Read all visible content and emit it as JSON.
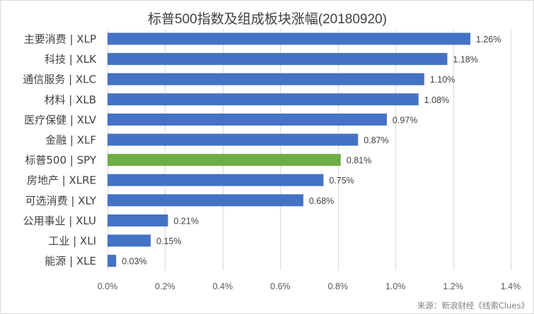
{
  "chart_data": {
    "type": "bar",
    "orientation": "horizontal",
    "title": "标普500指数及组成板块涨幅(20180920)",
    "categories": [
      "主要消费 | XLP",
      "科技 | XLK",
      "通信服务 | XLC",
      "材料 | XLB",
      "医疗保健 | XLV",
      "金融 | XLF",
      "标普500 | SPY",
      "房地产 | XLRE",
      "可选消费 | XLY",
      "公用事业 | XLU",
      "工业 | XLI",
      "能源 | XLE"
    ],
    "values": [
      1.26,
      1.18,
      1.1,
      1.08,
      0.97,
      0.87,
      0.81,
      0.75,
      0.68,
      0.21,
      0.15,
      0.03
    ],
    "value_labels": [
      "1.26%",
      "1.18%",
      "1.10%",
      "1.08%",
      "0.97%",
      "0.87%",
      "0.81%",
      "0.75%",
      "0.68%",
      "0.21%",
      "0.15%",
      "0.03%"
    ],
    "xlim": [
      0,
      1.4
    ],
    "x_ticks": [
      0,
      0.2,
      0.4,
      0.6,
      0.8,
      1.0,
      1.2,
      1.4
    ],
    "x_tick_labels": [
      "0.0%",
      "0.2%",
      "0.4%",
      "0.6%",
      "0.8%",
      "1.0%",
      "1.2%",
      "1.4%"
    ],
    "xlabel": "",
    "ylabel": "",
    "grid": "vertical",
    "legend": "none",
    "bar_color": "#4472c4",
    "highlight_color": "#70ad47",
    "highlight_index": 6
  },
  "source_note": "来源：新浪财经《线索Clues》"
}
